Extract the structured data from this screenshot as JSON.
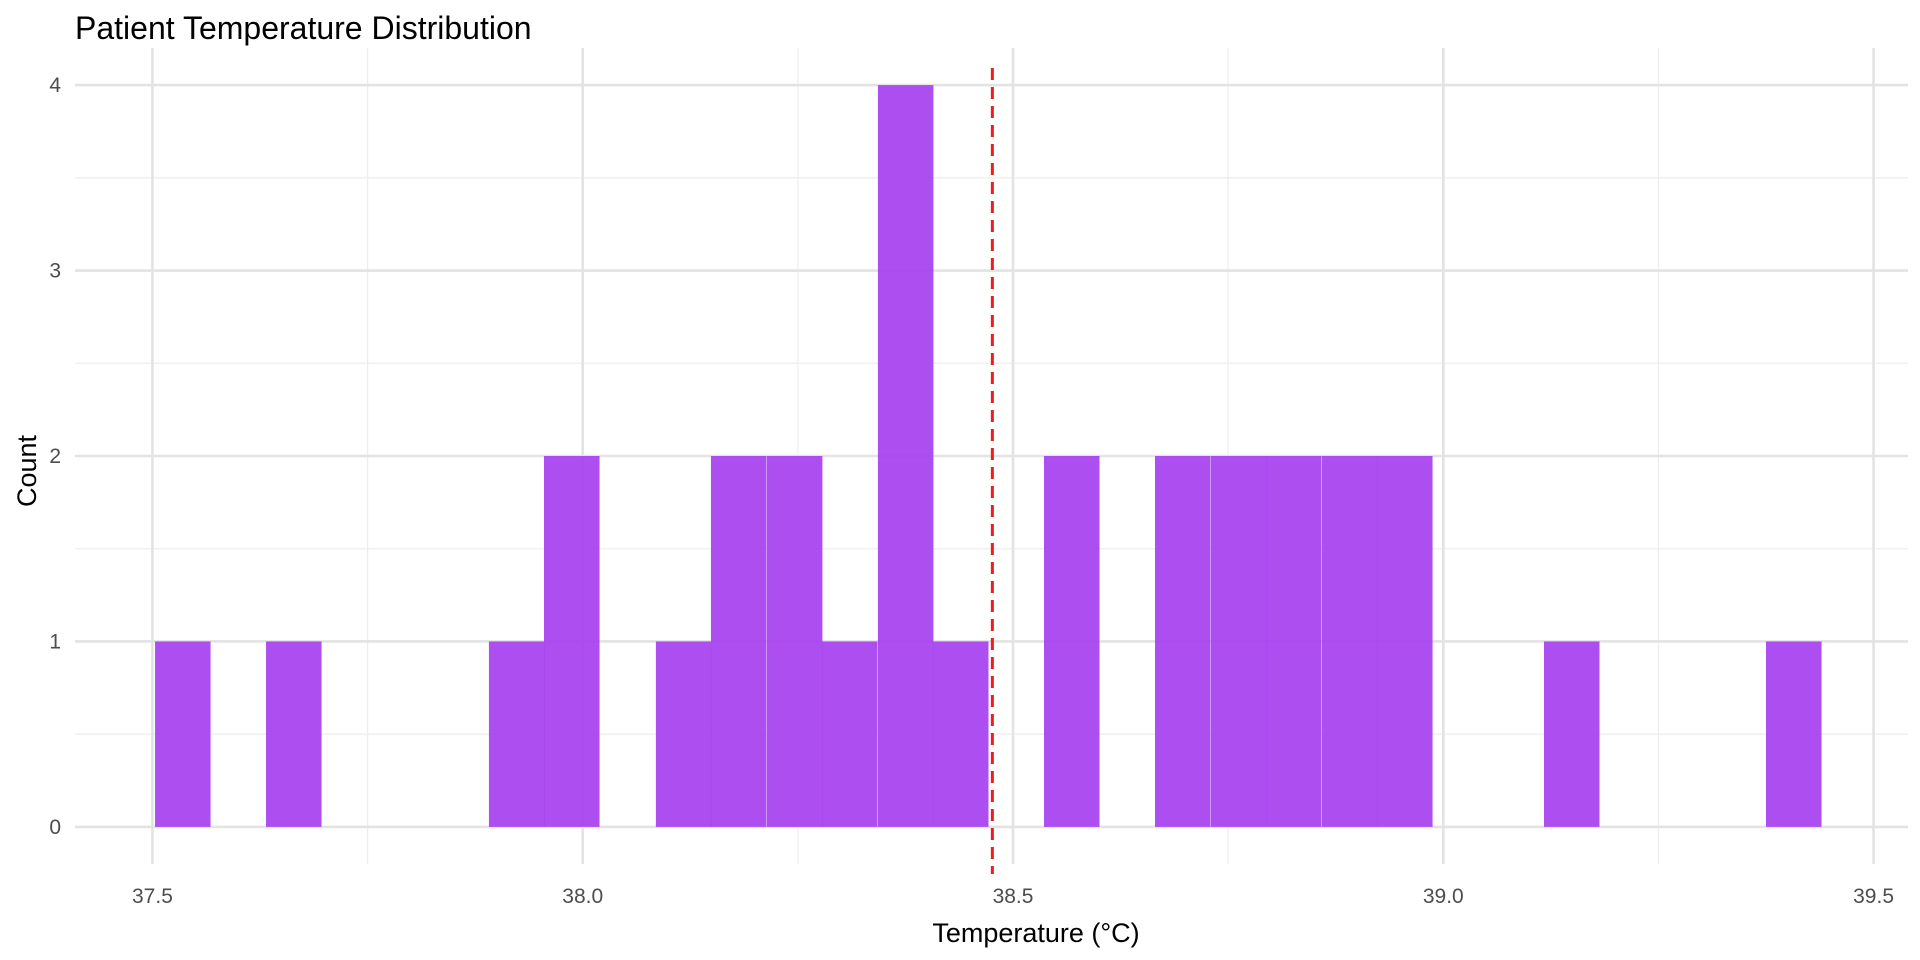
{
  "chart_data": {
    "type": "bar",
    "subtype": "histogram",
    "title": "Patient Temperature Distribution",
    "xlabel": "Temperature (°C)",
    "ylabel": "Count",
    "xlim": [
      37.41,
      39.54
    ],
    "ylim": [
      -0.2,
      4.2
    ],
    "x_ticks": [
      37.5,
      38.0,
      38.5,
      39.0,
      39.5
    ],
    "x_tick_labels": [
      "37.5",
      "38.0",
      "38.5",
      "39.0",
      "39.5"
    ],
    "y_ticks": [
      0,
      1,
      2,
      3,
      4
    ],
    "y_tick_labels": [
      "0",
      "1",
      "2",
      "3",
      "4"
    ],
    "bin_width": 0.0645,
    "bins": [
      {
        "x0": 37.503,
        "count": 1
      },
      {
        "x0": 37.632,
        "count": 1
      },
      {
        "x0": 37.891,
        "count": 1
      },
      {
        "x0": 37.955,
        "count": 2
      },
      {
        "x0": 38.085,
        "count": 1
      },
      {
        "x0": 38.149,
        "count": 2
      },
      {
        "x0": 38.214,
        "count": 2
      },
      {
        "x0": 38.278,
        "count": 1
      },
      {
        "x0": 38.343,
        "count": 4
      },
      {
        "x0": 38.407,
        "count": 1
      },
      {
        "x0": 38.536,
        "count": 2
      },
      {
        "x0": 38.665,
        "count": 2
      },
      {
        "x0": 38.73,
        "count": 2
      },
      {
        "x0": 38.794,
        "count": 2
      },
      {
        "x0": 38.859,
        "count": 2
      },
      {
        "x0": 38.923,
        "count": 2
      },
      {
        "x0": 39.117,
        "count": 1
      },
      {
        "x0": 39.375,
        "count": 1
      }
    ],
    "mean_line": {
      "x": 38.476,
      "color": "#ee1c1c",
      "style": "dashed"
    },
    "bar_color": "#a63ff0",
    "grid": true,
    "legend": "none"
  }
}
